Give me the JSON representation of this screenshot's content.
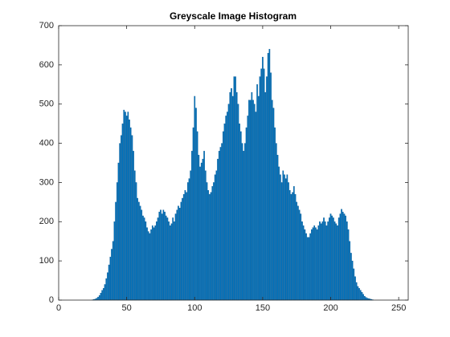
{
  "chart_data": {
    "type": "bar",
    "title": "Greyscale Image Histogram",
    "x": [
      0,
      1,
      2,
      3,
      4,
      5,
      6,
      7,
      8,
      9,
      10,
      11,
      12,
      13,
      14,
      15,
      16,
      17,
      18,
      19,
      20,
      21,
      22,
      23,
      24,
      25,
      26,
      27,
      28,
      29,
      30,
      31,
      32,
      33,
      34,
      35,
      36,
      37,
      38,
      39,
      40,
      41,
      42,
      43,
      44,
      45,
      46,
      47,
      48,
      49,
      50,
      51,
      52,
      53,
      54,
      55,
      56,
      57,
      58,
      59,
      60,
      61,
      62,
      63,
      64,
      65,
      66,
      67,
      68,
      69,
      70,
      71,
      72,
      73,
      74,
      75,
      76,
      77,
      78,
      79,
      80,
      81,
      82,
      83,
      84,
      85,
      86,
      87,
      88,
      89,
      90,
      91,
      92,
      93,
      94,
      95,
      96,
      97,
      98,
      99,
      100,
      101,
      102,
      103,
      104,
      105,
      106,
      107,
      108,
      109,
      110,
      111,
      112,
      113,
      114,
      115,
      116,
      117,
      118,
      119,
      120,
      121,
      122,
      123,
      124,
      125,
      126,
      127,
      128,
      129,
      130,
      131,
      132,
      133,
      134,
      135,
      136,
      137,
      138,
      139,
      140,
      141,
      142,
      143,
      144,
      145,
      146,
      147,
      148,
      149,
      150,
      151,
      152,
      153,
      154,
      155,
      156,
      157,
      158,
      159,
      160,
      161,
      162,
      163,
      164,
      165,
      166,
      167,
      168,
      169,
      170,
      171,
      172,
      173,
      174,
      175,
      176,
      177,
      178,
      179,
      180,
      181,
      182,
      183,
      184,
      185,
      186,
      187,
      188,
      189,
      190,
      191,
      192,
      193,
      194,
      195,
      196,
      197,
      198,
      199,
      200,
      201,
      202,
      203,
      204,
      205,
      206,
      207,
      208,
      209,
      210,
      211,
      212,
      213,
      214,
      215,
      216,
      217,
      218,
      219,
      220,
      221,
      222,
      223,
      224,
      225,
      226,
      227,
      228,
      229,
      230,
      231,
      232,
      233,
      234,
      235,
      236,
      237,
      238,
      239,
      240,
      241,
      242,
      243,
      244,
      245,
      246,
      247,
      248,
      249,
      250,
      251,
      252,
      253,
      254,
      255
    ],
    "values": [
      0,
      0,
      0,
      0,
      0,
      0,
      0,
      0,
      0,
      0,
      0,
      0,
      0,
      0,
      0,
      0,
      0,
      0,
      0,
      0,
      0,
      0,
      0,
      0,
      0,
      1,
      2,
      3,
      5,
      8,
      12,
      18,
      25,
      30,
      40,
      55,
      70,
      90,
      110,
      130,
      150,
      200,
      250,
      300,
      350,
      400,
      420,
      450,
      485,
      480,
      470,
      480,
      460,
      440,
      420,
      380,
      330,
      300,
      260,
      250,
      240,
      230,
      215,
      210,
      200,
      185,
      175,
      170,
      180,
      190,
      185,
      190,
      200,
      210,
      225,
      230,
      220,
      230,
      225,
      215,
      210,
      200,
      190,
      195,
      210,
      200,
      220,
      230,
      240,
      235,
      250,
      260,
      270,
      280,
      275,
      300,
      310,
      330,
      380,
      440,
      520,
      490,
      430,
      370,
      340,
      350,
      360,
      380,
      330,
      300,
      280,
      270,
      275,
      290,
      300,
      320,
      330,
      360,
      380,
      390,
      400,
      430,
      450,
      470,
      480,
      500,
      530,
      540,
      520,
      570,
      570,
      530,
      500,
      450,
      430,
      400,
      380,
      400,
      440,
      470,
      510,
      510,
      530,
      510,
      500,
      480,
      550,
      520,
      570,
      590,
      620,
      590,
      530,
      570,
      630,
      640,
      580,
      510,
      490,
      440,
      400,
      370,
      340,
      320,
      300,
      330,
      320,
      310,
      320,
      300,
      280,
      270,
      275,
      290,
      270,
      250,
      240,
      230,
      220,
      200,
      190,
      180,
      170,
      160,
      160,
      170,
      180,
      185,
      190,
      185,
      180,
      190,
      200,
      195,
      200,
      210,
      200,
      190,
      200,
      210,
      220,
      215,
      210,
      200,
      195,
      190,
      210,
      220,
      232,
      225,
      220,
      215,
      200,
      180,
      150,
      120,
      100,
      80,
      60,
      45,
      35,
      30,
      25,
      20,
      15,
      10,
      7,
      5,
      4,
      3,
      2,
      1,
      0,
      0,
      0,
      0,
      0,
      0,
      0,
      0,
      0,
      0,
      0,
      0,
      0,
      0,
      0,
      0,
      0,
      0,
      0,
      0,
      0,
      0,
      0,
      0
    ],
    "color": "#0072bd",
    "xlim": [
      0,
      257
    ],
    "xticks": [
      0,
      50,
      100,
      150,
      200,
      250
    ],
    "ylim": [
      0,
      700
    ],
    "yticks": [
      0,
      100,
      200,
      300,
      400,
      500,
      600,
      700
    ]
  }
}
